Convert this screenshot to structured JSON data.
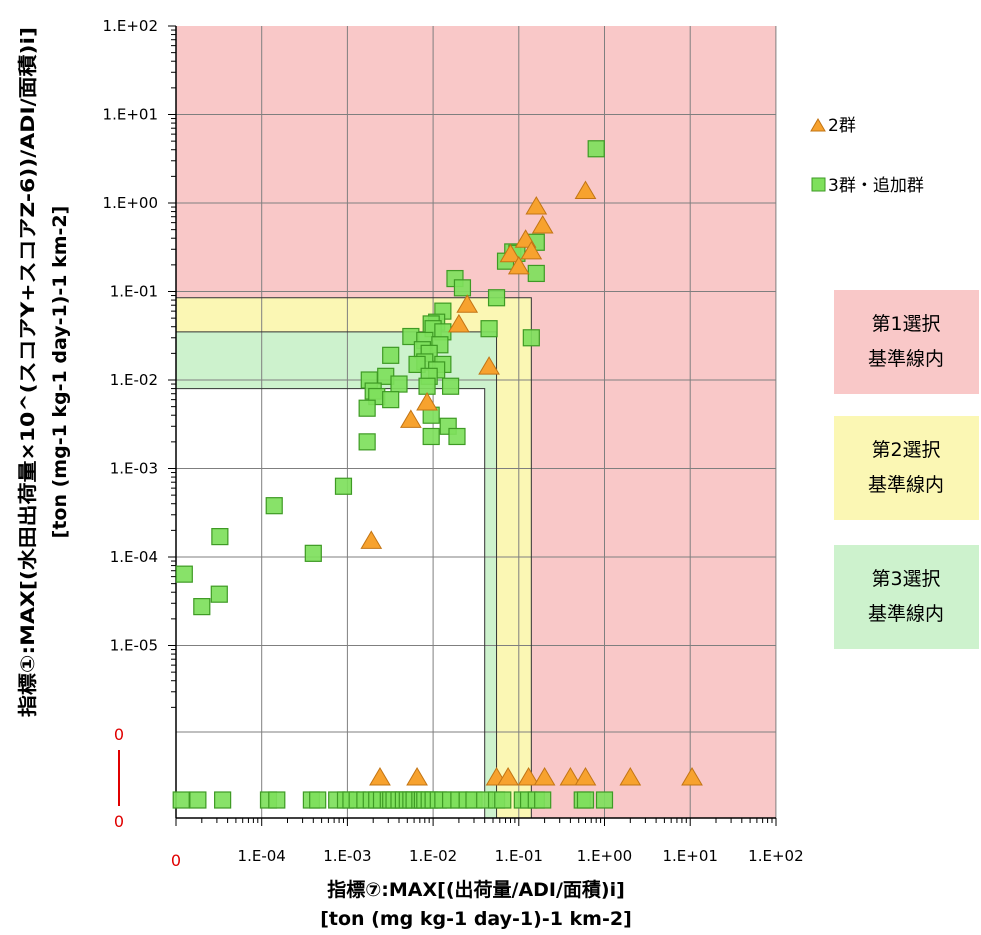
{
  "chart_data": {
    "type": "scatter",
    "x_scale": "log",
    "y_scale": "log",
    "xlim": [
      1e-05,
      100
    ],
    "ylim": [
      1e-06,
      100
    ],
    "grid": true,
    "x_ticks": [
      "1.E-04",
      "1.E-03",
      "1.E-02",
      "1.E-01",
      "1.E+00",
      "1.E+01",
      "1.E+02"
    ],
    "x_zero_label": "0",
    "y_ticks": [
      "1.E+02",
      "1.E+01",
      "1.E+00",
      "1.E-01",
      "1.E-02",
      "1.E-03",
      "1.E-04",
      "1.E-05"
    ],
    "y_zero_top": "0",
    "y_zero_bottom": "0",
    "xlabel_line1": "指標⑦:MAX[(出荷量/ADI/面積)i]",
    "xlabel_line2": "[ton (mg kg-1 day-1)-1 km-2]",
    "ylabel_line1": "指標①:MAX[(水田出荷量×10^(スコアY+スコアZ-6))/ADI/面積)i]",
    "ylabel_line2": "[ton (mg-1 kg-1 day-1)-1 km-2]",
    "regions": [
      {
        "name": "第1選択基準線内",
        "color": "#f9c8c8",
        "x_threshold": 0.14,
        "y_threshold": 0.085
      },
      {
        "name": "第2選択基準線内",
        "color": "#fbf7b4",
        "x_threshold": 0.055,
        "y_threshold": 0.035
      },
      {
        "name": "第3選択基準線内",
        "color": "#cdf2cd",
        "x_threshold": 0.04,
        "y_threshold": 0.008
      }
    ],
    "legend_position": "right",
    "series": [
      {
        "name": "2群",
        "marker": "triangle",
        "color": "#f7a22e",
        "stroke": "#c27414",
        "points": [
          [
            0.6,
            1.35
          ],
          [
            0.16,
            0.9
          ],
          [
            0.19,
            0.55
          ],
          [
            0.12,
            0.38
          ],
          [
            0.14,
            0.28
          ],
          [
            0.08,
            0.26
          ],
          [
            0.1,
            0.19
          ],
          [
            0.025,
            0.07
          ],
          [
            0.02,
            0.042
          ],
          [
            0.045,
            0.014
          ],
          [
            0.0085,
            0.0055
          ],
          [
            0.0055,
            0.0035
          ],
          [
            0.0019,
            0.00015
          ]
        ],
        "zero_x_points": [
          1.15e-05,
          1.17e-05
        ],
        "zero_y_points": [
          0.0024,
          0.0065,
          0.055,
          0.075,
          0.13,
          0.2,
          0.4,
          0.6,
          2.0,
          10.5
        ]
      },
      {
        "name": "3群・追加群",
        "marker": "square",
        "color": "#7ee05c",
        "stroke": "#3e9a24",
        "points": [
          [
            0.8,
            4.1
          ],
          [
            0.16,
            0.36
          ],
          [
            0.085,
            0.28
          ],
          [
            0.095,
            0.27
          ],
          [
            0.07,
            0.22
          ],
          [
            0.16,
            0.16
          ],
          [
            0.018,
            0.14
          ],
          [
            0.022,
            0.11
          ],
          [
            0.055,
            0.085
          ],
          [
            0.013,
            0.06
          ],
          [
            0.011,
            0.045
          ],
          [
            0.0095,
            0.043
          ],
          [
            0.01,
            0.038
          ],
          [
            0.045,
            0.038
          ],
          [
            0.013,
            0.035
          ],
          [
            0.0055,
            0.031
          ],
          [
            0.14,
            0.03
          ],
          [
            0.008,
            0.028
          ],
          [
            0.012,
            0.025
          ],
          [
            0.0075,
            0.022
          ],
          [
            0.009,
            0.02
          ],
          [
            0.0032,
            0.019
          ],
          [
            0.008,
            0.016
          ],
          [
            0.0065,
            0.015
          ],
          [
            0.013,
            0.015
          ],
          [
            0.011,
            0.013
          ],
          [
            0.009,
            0.011
          ],
          [
            0.0028,
            0.011
          ],
          [
            0.0018,
            0.01
          ],
          [
            0.004,
            0.009
          ],
          [
            0.0085,
            0.0085
          ],
          [
            0.016,
            0.0085
          ],
          [
            0.002,
            0.0075
          ],
          [
            0.0022,
            0.0065
          ],
          [
            0.0032,
            0.006
          ],
          [
            0.0017,
            0.0048
          ],
          [
            0.0095,
            0.004
          ],
          [
            0.015,
            0.003
          ],
          [
            0.0095,
            0.0023
          ],
          [
            0.019,
            0.0023
          ],
          [
            0.0017,
            0.002
          ],
          [
            0.0009,
            0.00063
          ],
          [
            0.00014,
            0.00038
          ],
          [
            0.0004,
            0.00011
          ],
          [
            3.25e-05,
            0.00017
          ],
          [
            3.2e-05,
            3.8e-05
          ],
          [
            2e-05,
            2.75e-05
          ],
          [
            1.25e-05,
            6.4e-05
          ]
        ],
        "zero_y_points": [
          1.15e-05,
          1.8e-05,
          3.5e-05,
          0.00012,
          0.00015,
          0.00038,
          0.00045,
          0.00075,
          0.00095,
          0.0011,
          0.0013,
          0.0016,
          0.0019,
          0.0022,
          0.0025,
          0.003,
          0.0032,
          0.0035,
          0.004,
          0.0045,
          0.005,
          0.0055,
          0.006,
          0.007,
          0.0075,
          0.008,
          0.009,
          0.01,
          0.0115,
          0.013,
          0.016,
          0.02,
          0.025,
          0.03,
          0.04,
          0.055,
          0.065,
          0.11,
          0.13,
          0.16,
          0.19,
          0.55,
          0.6,
          1.0
        ]
      }
    ]
  }
}
